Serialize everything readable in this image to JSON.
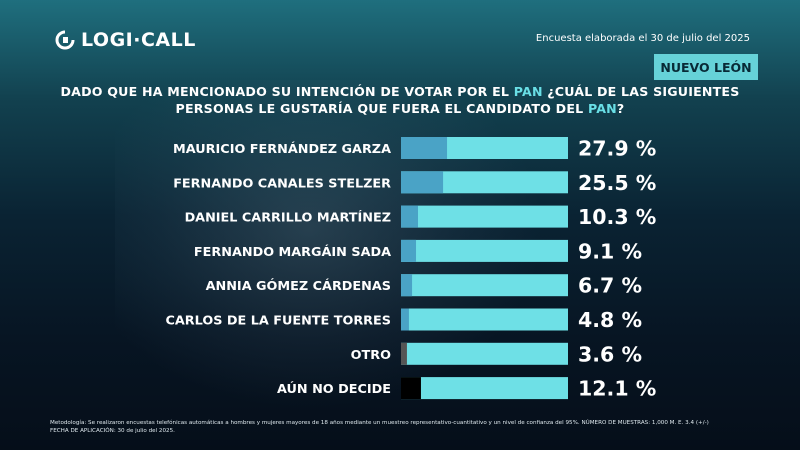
{
  "header": {
    "brand": "LOGI·CALL",
    "survey_date": "Encuesta elaborada el 30 de julio del 2025",
    "region": "NUEVO LEÓN"
  },
  "question": {
    "line1_a": "DADO QUE HA MENCIONADO SU INTENCIÓN DE VOTAR POR EL ",
    "line1_b": "PAN",
    "line1_c": " ¿CUÁL DE LAS SIGUIENTES",
    "line2_a": "PERSONAS LE GUSTARÍA QUE FUERA EL CANDIDATO DEL ",
    "line2_b": "PAN",
    "line2_c": "?"
  },
  "colors": {
    "bar_main": "#6ee0e6",
    "accent": "#4aa3c6",
    "highlight_text": "#69dfe6"
  },
  "chart_data": {
    "type": "bar",
    "orientation": "horizontal",
    "categories": [
      "MAURICIO FERNÁNDEZ GARZA",
      "FERNANDO CANALES STELZER",
      "DANIEL CARRILLO MARTÍNEZ",
      "FERNANDO MARGÁIN SADA",
      "ANNIA GÓMEZ CÁRDENAS",
      "CARLOS DE LA FUENTE TORRES",
      "OTRO",
      "AÚN NO DECIDE"
    ],
    "values": [
      27.9,
      25.5,
      10.3,
      9.1,
      6.7,
      4.8,
      3.6,
      12.1
    ],
    "value_labels": [
      "27.9 %",
      "25.5 %",
      "10.3 %",
      "9.1 %",
      "6.7 %",
      "4.8 %",
      "3.6 %",
      "12.1 %"
    ],
    "accent_colors": [
      "#4aa3c6",
      "#4aa3c6",
      "#4aa3c6",
      "#4aa3c6",
      "#4aa3c6",
      "#4aa3c6",
      "#555555",
      "#000000"
    ],
    "xlim": [
      0,
      100
    ]
  },
  "footer": {
    "line1": "Metodología: Se realizaron encuestas telefónicas automáticas a hombres y mujeres mayores de 18 años mediante un muestreo representativo-cuantitativo y un nivel de confianza del 95%. NÚMERO DE MUESTRAS: 1,000 M. E. 3.4 (+/-)",
    "line2": "FECHA DE APLICACIÓN: 30 de julio del 2025."
  }
}
